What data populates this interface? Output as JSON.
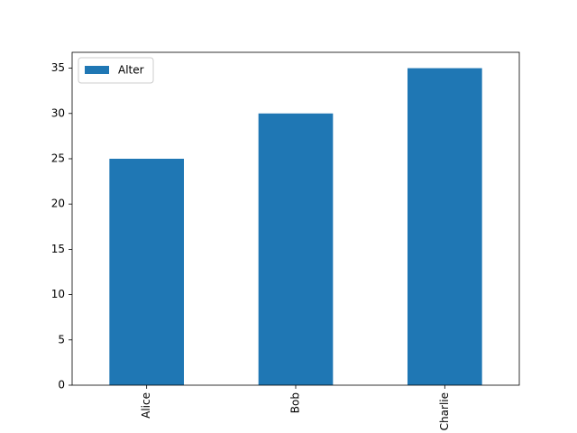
{
  "chart_data": {
    "type": "bar",
    "categories": [
      "Alice",
      "Bob",
      "Charlie"
    ],
    "series": [
      {
        "name": "Alter",
        "color": "#1f77b4",
        "values": [
          25,
          30,
          35
        ]
      }
    ],
    "ylim": [
      0,
      36.75
    ],
    "yticks": [
      0,
      5,
      10,
      15,
      20,
      25,
      30,
      35
    ],
    "grid": false,
    "legend": "upper-left"
  }
}
